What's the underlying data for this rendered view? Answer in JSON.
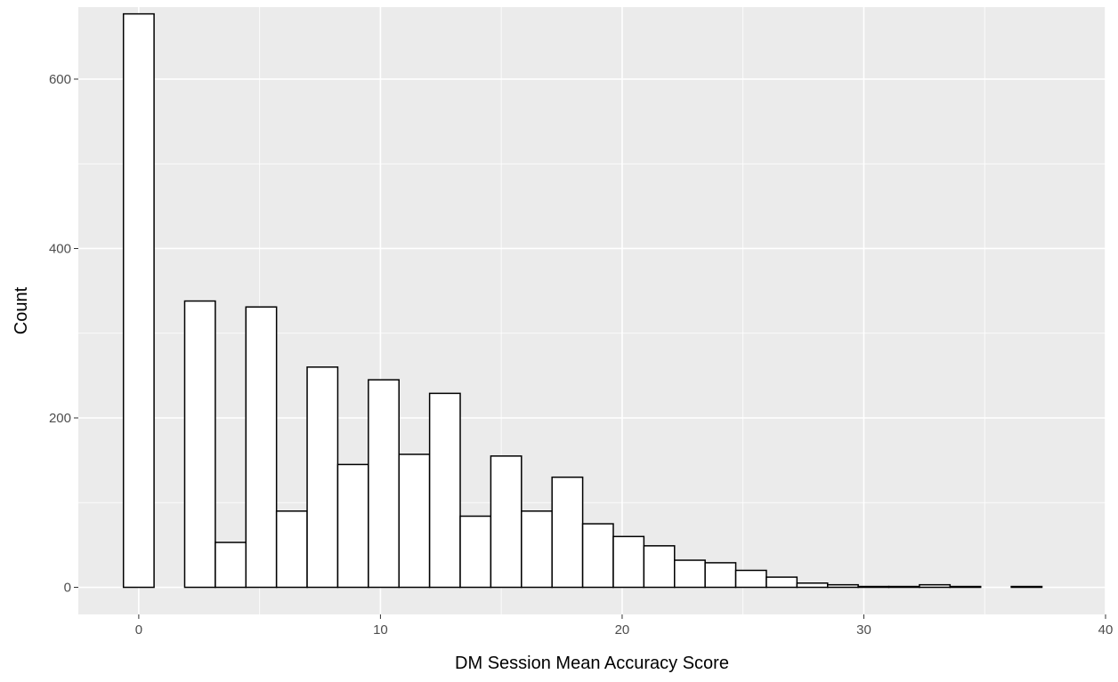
{
  "chart_data": {
    "type": "bar",
    "xlabel": "DM Session Mean Accuracy Score",
    "ylabel": "Count",
    "title": "",
    "xlim": [
      -2.5,
      40
    ],
    "ylim": [
      -32,
      685
    ],
    "x_ticks": [
      0,
      10,
      20,
      30,
      40
    ],
    "y_ticks": [
      0,
      200,
      400,
      600
    ],
    "bin_width": 1.2667,
    "bins": [
      {
        "x0": -0.6333,
        "count": 677
      },
      {
        "x0": 0.6333,
        "count": 0
      },
      {
        "x0": 1.9,
        "count": 338
      },
      {
        "x0": 3.1667,
        "count": 53
      },
      {
        "x0": 4.4333,
        "count": 331
      },
      {
        "x0": 5.7,
        "count": 90
      },
      {
        "x0": 6.9667,
        "count": 260
      },
      {
        "x0": 8.2333,
        "count": 145
      },
      {
        "x0": 9.5,
        "count": 245
      },
      {
        "x0": 10.7667,
        "count": 157
      },
      {
        "x0": 12.0333,
        "count": 229
      },
      {
        "x0": 13.3,
        "count": 84
      },
      {
        "x0": 14.5667,
        "count": 155
      },
      {
        "x0": 15.8333,
        "count": 90
      },
      {
        "x0": 17.1,
        "count": 130
      },
      {
        "x0": 18.3667,
        "count": 75
      },
      {
        "x0": 19.6333,
        "count": 60
      },
      {
        "x0": 20.9,
        "count": 49
      },
      {
        "x0": 22.1667,
        "count": 32
      },
      {
        "x0": 23.4333,
        "count": 29
      },
      {
        "x0": 24.7,
        "count": 20
      },
      {
        "x0": 25.9667,
        "count": 12
      },
      {
        "x0": 27.2333,
        "count": 5
      },
      {
        "x0": 28.5,
        "count": 3
      },
      {
        "x0": 29.7667,
        "count": 1
      },
      {
        "x0": 31.0333,
        "count": 1
      },
      {
        "x0": 32.3,
        "count": 3
      },
      {
        "x0": 33.5667,
        "count": 1
      },
      {
        "x0": 34.8333,
        "count": 0
      },
      {
        "x0": 36.1,
        "count": 1
      }
    ],
    "grid": true,
    "bar_fill": "#ffffff",
    "bar_stroke": "#000000",
    "panel_background": "#ebebeb",
    "grid_color": "#ffffff"
  }
}
